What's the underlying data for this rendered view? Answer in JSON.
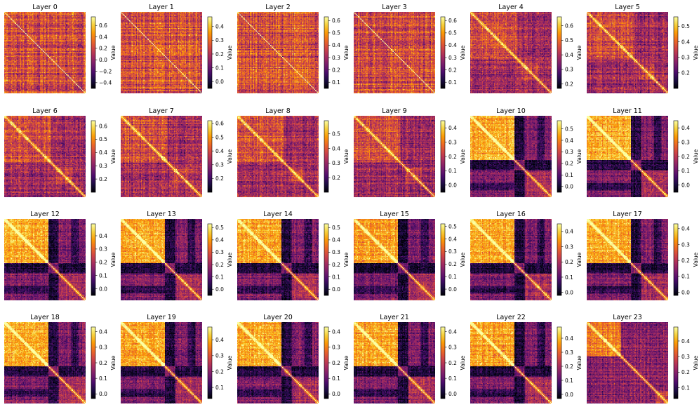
{
  "figure": {
    "colormap": "inferno",
    "colormap_stops": [
      "#000004",
      "#1b0c41",
      "#4a0c6b",
      "#781c6d",
      "#a52c60",
      "#cf4446",
      "#ed6925",
      "#fb9b06",
      "#f7d13d",
      "#fcffa4"
    ]
  },
  "chart_data": [
    {
      "type": "heatmap",
      "title": "Layer 0",
      "colorbar_label": "Value",
      "clim": [
        -0.5,
        0.75
      ],
      "colorbar_ticks": [
        "−0.4",
        "−0.2",
        "0.0",
        "0.2",
        "0.4",
        "0.6"
      ],
      "tick_values": [
        -0.4,
        -0.2,
        0.0,
        0.2,
        0.4,
        0.6
      ],
      "pattern": "uniform",
      "diag": 0.6
    },
    {
      "type": "heatmap",
      "title": "Layer 1",
      "colorbar_label": "Value",
      "clim": [
        -0.05,
        0.47
      ],
      "colorbar_ticks": [
        "0.0",
        "0.1",
        "0.2",
        "0.3",
        "0.4"
      ],
      "tick_values": [
        0.0,
        0.1,
        0.2,
        0.3,
        0.4
      ],
      "pattern": "uniform",
      "diag": 0.45
    },
    {
      "type": "heatmap",
      "title": "Layer 2",
      "colorbar_label": "Value",
      "clim": [
        0.05,
        0.63
      ],
      "colorbar_ticks": [
        "0.1",
        "0.2",
        "0.3",
        "0.4",
        "0.5",
        "0.6"
      ],
      "tick_values": [
        0.1,
        0.2,
        0.3,
        0.4,
        0.5,
        0.6
      ],
      "pattern": "uniform",
      "diag": 0.6
    },
    {
      "type": "heatmap",
      "title": "Layer 3",
      "colorbar_label": "Value",
      "clim": [
        0.05,
        0.63
      ],
      "colorbar_ticks": [
        "0.1",
        "0.2",
        "0.3",
        "0.4",
        "0.5",
        "0.6"
      ],
      "tick_values": [
        0.1,
        0.2,
        0.3,
        0.4,
        0.5,
        0.6
      ],
      "pattern": "uniform",
      "diag": 0.6
    },
    {
      "type": "heatmap",
      "title": "Layer 4",
      "colorbar_label": "Value",
      "clim": [
        0.17,
        0.66
      ],
      "colorbar_ticks": [
        "0.2",
        "0.3",
        "0.4",
        "0.5",
        "0.6"
      ],
      "tick_values": [
        0.2,
        0.3,
        0.4,
        0.5,
        0.6
      ],
      "pattern": "block",
      "diag": 0.65
    },
    {
      "type": "heatmap",
      "title": "Layer 5",
      "colorbar_label": "Value",
      "clim": [
        0.1,
        0.56
      ],
      "colorbar_ticks": [
        "0.2",
        "0.3",
        "0.4",
        "0.5"
      ],
      "tick_values": [
        0.2,
        0.3,
        0.4,
        0.5
      ],
      "pattern": "block",
      "diag": 0.55
    },
    {
      "type": "heatmap",
      "title": "Layer 6",
      "colorbar_label": "Value",
      "clim": [
        0.1,
        0.64
      ],
      "colorbar_ticks": [
        "0.2",
        "0.3",
        "0.4",
        "0.5",
        "0.6"
      ],
      "tick_values": [
        0.2,
        0.3,
        0.4,
        0.5,
        0.6
      ],
      "pattern": "block",
      "diag": 0.63
    },
    {
      "type": "heatmap",
      "title": "Layer 7",
      "colorbar_label": "Value",
      "clim": [
        0.1,
        0.62
      ],
      "colorbar_ticks": [
        "0.2",
        "0.3",
        "0.4",
        "0.5",
        "0.6"
      ],
      "tick_values": [
        0.2,
        0.3,
        0.4,
        0.5,
        0.6
      ],
      "pattern": "block",
      "diag": 0.6
    },
    {
      "type": "heatmap",
      "title": "Layer 8",
      "colorbar_label": "Value",
      "clim": [
        0.1,
        0.59
      ],
      "colorbar_ticks": [
        "0.2",
        "0.3",
        "0.4",
        "0.5"
      ],
      "tick_values": [
        0.2,
        0.3,
        0.4,
        0.5
      ],
      "pattern": "block",
      "diag": 0.58
    },
    {
      "type": "heatmap",
      "title": "Layer 9",
      "colorbar_label": "Value",
      "clim": [
        -0.05,
        0.45
      ],
      "colorbar_ticks": [
        "0.0",
        "0.1",
        "0.2",
        "0.3",
        "0.4"
      ],
      "tick_values": [
        0.0,
        0.1,
        0.2,
        0.3,
        0.4
      ],
      "pattern": "block",
      "diag": 0.44
    },
    {
      "type": "heatmap",
      "title": "Layer 10",
      "colorbar_label": "Value",
      "clim": [
        -0.05,
        0.57
      ],
      "colorbar_ticks": [
        "0.0",
        "0.1",
        "0.2",
        "0.3",
        "0.4",
        "0.5"
      ],
      "tick_values": [
        0.0,
        0.1,
        0.2,
        0.3,
        0.4,
        0.5
      ],
      "pattern": "strong",
      "diag": 0.56
    },
    {
      "type": "heatmap",
      "title": "Layer 11",
      "colorbar_label": "Value",
      "clim": [
        -0.05,
        0.45
      ],
      "colorbar_ticks": [
        "0.0",
        "0.1",
        "0.2",
        "0.3",
        "0.4"
      ],
      "tick_values": [
        0.0,
        0.1,
        0.2,
        0.3,
        0.4
      ],
      "pattern": "strong",
      "diag": 0.44
    },
    {
      "type": "heatmap",
      "title": "Layer 12",
      "colorbar_label": "Value",
      "clim": [
        -0.05,
        0.49
      ],
      "colorbar_ticks": [
        "0.0",
        "0.1",
        "0.2",
        "0.3",
        "0.4"
      ],
      "tick_values": [
        0.0,
        0.1,
        0.2,
        0.3,
        0.4
      ],
      "pattern": "strong",
      "diag": 0.48
    },
    {
      "type": "heatmap",
      "title": "Layer 13",
      "colorbar_label": "Value",
      "clim": [
        -0.05,
        0.53
      ],
      "colorbar_ticks": [
        "0.0",
        "0.1",
        "0.2",
        "0.3",
        "0.4",
        "0.5"
      ],
      "tick_values": [
        0.0,
        0.1,
        0.2,
        0.3,
        0.4,
        0.5
      ],
      "pattern": "strong",
      "diag": 0.52
    },
    {
      "type": "heatmap",
      "title": "Layer 14",
      "colorbar_label": "Value",
      "clim": [
        -0.05,
        0.53
      ],
      "colorbar_ticks": [
        "0.0",
        "0.1",
        "0.2",
        "0.3",
        "0.4",
        "0.5"
      ],
      "tick_values": [
        0.0,
        0.1,
        0.2,
        0.3,
        0.4,
        0.5
      ],
      "pattern": "strong",
      "diag": 0.52
    },
    {
      "type": "heatmap",
      "title": "Layer 15",
      "colorbar_label": "Value",
      "clim": [
        -0.05,
        0.52
      ],
      "colorbar_ticks": [
        "0.0",
        "0.1",
        "0.2",
        "0.3",
        "0.4",
        "0.5"
      ],
      "tick_values": [
        0.0,
        0.1,
        0.2,
        0.3,
        0.4,
        0.5
      ],
      "pattern": "strong",
      "diag": 0.51
    },
    {
      "type": "heatmap",
      "title": "Layer 16",
      "colorbar_label": "Value",
      "clim": [
        -0.02,
        0.45
      ],
      "colorbar_ticks": [
        "0.0",
        "0.1",
        "0.2",
        "0.3",
        "0.4"
      ],
      "tick_values": [
        0.0,
        0.1,
        0.2,
        0.3,
        0.4
      ],
      "pattern": "strong",
      "diag": 0.44
    },
    {
      "type": "heatmap",
      "title": "Layer 17",
      "colorbar_label": "Value",
      "clim": [
        -0.02,
        0.43
      ],
      "colorbar_ticks": [
        "0.0",
        "0.1",
        "0.2",
        "0.3",
        "0.4"
      ],
      "tick_values": [
        0.0,
        0.1,
        0.2,
        0.3,
        0.4
      ],
      "pattern": "strong",
      "diag": 0.42
    },
    {
      "type": "heatmap",
      "title": "Layer 18",
      "colorbar_label": "Value",
      "clim": [
        -0.03,
        0.43
      ],
      "colorbar_ticks": [
        "0.0",
        "0.1",
        "0.2",
        "0.3",
        "0.4"
      ],
      "tick_values": [
        0.0,
        0.1,
        0.2,
        0.3,
        0.4
      ],
      "pattern": "strong",
      "diag": 0.42
    },
    {
      "type": "heatmap",
      "title": "Layer 19",
      "colorbar_label": "Value",
      "clim": [
        0.03,
        0.48
      ],
      "colorbar_ticks": [
        "0.1",
        "0.2",
        "0.3",
        "0.4"
      ],
      "tick_values": [
        0.1,
        0.2,
        0.3,
        0.4
      ],
      "pattern": "strong",
      "diag": 0.47
    },
    {
      "type": "heatmap",
      "title": "Layer 20",
      "colorbar_label": "Value",
      "clim": [
        -0.03,
        0.43
      ],
      "colorbar_ticks": [
        "0.0",
        "0.1",
        "0.2",
        "0.3",
        "0.4"
      ],
      "tick_values": [
        0.0,
        0.1,
        0.2,
        0.3,
        0.4
      ],
      "pattern": "strong",
      "diag": 0.42
    },
    {
      "type": "heatmap",
      "title": "Layer 21",
      "colorbar_label": "Value",
      "clim": [
        -0.03,
        0.43
      ],
      "colorbar_ticks": [
        "0.0",
        "0.1",
        "0.2",
        "0.3",
        "0.4"
      ],
      "tick_values": [
        0.0,
        0.1,
        0.2,
        0.3,
        0.4
      ],
      "pattern": "strong",
      "diag": 0.42
    },
    {
      "type": "heatmap",
      "title": "Layer 22",
      "colorbar_label": "Value",
      "clim": [
        -0.03,
        0.48
      ],
      "colorbar_ticks": [
        "0.0",
        "0.1",
        "0.2",
        "0.3",
        "0.4"
      ],
      "tick_values": [
        0.0,
        0.1,
        0.2,
        0.3,
        0.4
      ],
      "pattern": "strong",
      "diag": 0.47
    },
    {
      "type": "heatmap",
      "title": "Layer 23",
      "colorbar_label": "Value",
      "clim": [
        0.03,
        0.49
      ],
      "colorbar_ticks": [
        "0.1",
        "0.2",
        "0.3",
        "0.4"
      ],
      "tick_values": [
        0.1,
        0.2,
        0.3,
        0.4
      ],
      "pattern": "corner",
      "diag": 0.48
    }
  ]
}
